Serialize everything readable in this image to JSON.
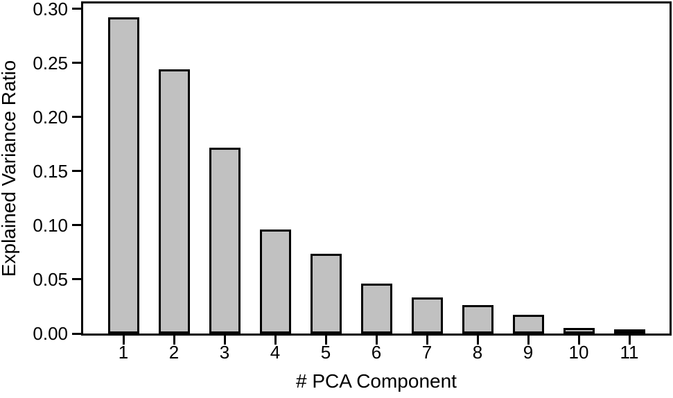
{
  "figure": {
    "background": "#ffffff",
    "text_color": "#000000"
  },
  "chart_data": {
    "type": "bar",
    "title": "",
    "xlabel": "# PCA Component",
    "ylabel": "Explained Variance Ratio",
    "categories": [
      "1",
      "2",
      "3",
      "4",
      "5",
      "6",
      "7",
      "8",
      "9",
      "10",
      "11"
    ],
    "values": [
      0.292,
      0.244,
      0.172,
      0.096,
      0.074,
      0.046,
      0.033,
      0.026,
      0.017,
      0.005,
      0.004
    ],
    "ylim": [
      0,
      0.305
    ],
    "yticks": [
      0.0,
      0.05,
      0.1,
      0.15,
      0.2,
      0.25,
      0.3
    ],
    "ytick_labels": [
      "0.00",
      "0.05",
      "0.10",
      "0.15",
      "0.20",
      "0.25",
      "0.30"
    ],
    "grid": false,
    "legend": null,
    "bar_fill_color": "#c1c1c1",
    "bar_edge_color": "#000000",
    "axis_color": "#000000"
  }
}
